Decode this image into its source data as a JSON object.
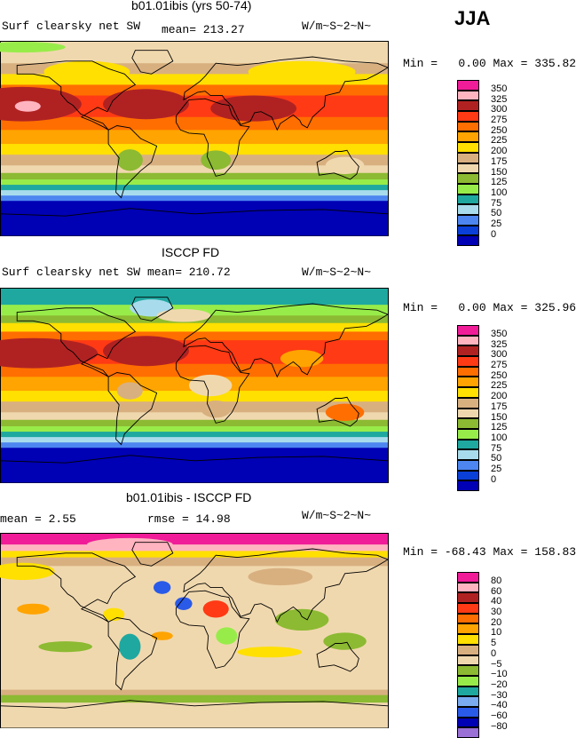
{
  "season": "JJA",
  "colors": {
    "abs": [
      "#9a6fd6",
      "#0000b4",
      "#0a3fd8",
      "#4d86f0",
      "#a8dcec",
      "#1ea8a0",
      "#98ec4a",
      "#8cba32",
      "#f0d8ae",
      "#d8b080",
      "#ffe000",
      "#ffa400",
      "#ff6e00",
      "#ff3a14",
      "#b02222",
      "#ffb4c0",
      "#f01c98"
    ],
    "diff": [
      "#9a6fd6",
      "#0000b4",
      "#2a5ae8",
      "#7aaaf0",
      "#1ea8a0",
      "#98ec4a",
      "#8cba32",
      "#f0d8ae",
      "#d8b080",
      "#ffe000",
      "#ffa400",
      "#ff6e00",
      "#ff3a14",
      "#b02222",
      "#ffb4c0",
      "#f01c98"
    ],
    "land": "#000000"
  },
  "panels": [
    {
      "title": "b01.01ibis (yrs 50-74)",
      "left_label": "Surf clearsky net SW",
      "mid_label": "mean= 213.27",
      "units": "W/m~S~2~N~",
      "min_label": "Min =",
      "min_value": "0.00",
      "max_label": "Max =",
      "max_value": "335.82",
      "legend_levels": [
        "350",
        "325",
        "300",
        "275",
        "250",
        "225",
        "200",
        "175",
        "150",
        "125",
        "100",
        "75",
        "50",
        "25",
        "0"
      ],
      "bands": [
        {
          "lat0": 90,
          "lat1": 80,
          "c": 8
        },
        {
          "lat0": 80,
          "lat1": 70,
          "c": 8
        },
        {
          "lat0": 70,
          "lat1": 60,
          "c": 9
        },
        {
          "lat0": 60,
          "lat1": 50,
          "c": 10
        },
        {
          "lat0": 50,
          "lat1": 40,
          "c": 12
        },
        {
          "lat0": 40,
          "lat1": 20,
          "c": 13
        },
        {
          "lat0": 20,
          "lat1": 8,
          "c": 12
        },
        {
          "lat0": 8,
          "lat1": -5,
          "c": 11
        },
        {
          "lat0": -5,
          "lat1": -15,
          "c": 10
        },
        {
          "lat0": -15,
          "lat1": -25,
          "c": 9
        },
        {
          "lat0": -25,
          "lat1": -32,
          "c": 8
        },
        {
          "lat0": -32,
          "lat1": -38,
          "c": 7
        },
        {
          "lat0": -38,
          "lat1": -43,
          "c": 6
        },
        {
          "lat0": -43,
          "lat1": -48,
          "c": 5
        },
        {
          "lat0": -48,
          "lat1": -53,
          "c": 4
        },
        {
          "lat0": -53,
          "lat1": -58,
          "c": 3
        },
        {
          "lat0": -58,
          "lat1": -90,
          "c": 1
        }
      ],
      "blobs": [
        {
          "lon": -160,
          "lat": 32,
          "rx": 55,
          "ry": 16,
          "c": 14
        },
        {
          "lon": -45,
          "lat": 32,
          "rx": 40,
          "ry": 14,
          "c": 14
        },
        {
          "lon": -155,
          "lat": 30,
          "rx": 12,
          "ry": 5,
          "c": 15
        },
        {
          "lon": 55,
          "lat": 28,
          "rx": 40,
          "ry": 12,
          "c": 14
        },
        {
          "lon": -100,
          "lat": 62,
          "rx": 40,
          "ry": 10,
          "c": 10
        },
        {
          "lon": 100,
          "lat": 62,
          "rx": 50,
          "ry": 10,
          "c": 10
        },
        {
          "lon": 140,
          "lat": -25,
          "rx": 18,
          "ry": 8,
          "c": 8
        },
        {
          "lon": 20,
          "lat": -20,
          "rx": 14,
          "ry": 9,
          "c": 7
        },
        {
          "lon": -60,
          "lat": -20,
          "rx": 12,
          "ry": 10,
          "c": 7
        },
        {
          "lon": -160,
          "lat": 85,
          "rx": 40,
          "ry": 5,
          "c": 6
        }
      ]
    },
    {
      "title": "ISCCP FD",
      "left_label": "Surf clearsky net SW",
      "mid_label": "mean= 210.72",
      "units": "W/m~S~2~N~",
      "min_label": "Min =",
      "min_value": "0.00",
      "max_label": "Max =",
      "max_value": "325.96",
      "legend_levels": [
        "350",
        "325",
        "300",
        "275",
        "250",
        "225",
        "200",
        "175",
        "150",
        "125",
        "100",
        "75",
        "50",
        "25",
        "0"
      ],
      "bands": [
        {
          "lat0": 90,
          "lat1": 75,
          "c": 5
        },
        {
          "lat0": 75,
          "lat1": 65,
          "c": 6
        },
        {
          "lat0": 65,
          "lat1": 58,
          "c": 7
        },
        {
          "lat0": 58,
          "lat1": 50,
          "c": 10
        },
        {
          "lat0": 50,
          "lat1": 42,
          "c": 12
        },
        {
          "lat0": 42,
          "lat1": 20,
          "c": 13
        },
        {
          "lat0": 20,
          "lat1": 8,
          "c": 12
        },
        {
          "lat0": 8,
          "lat1": -5,
          "c": 11
        },
        {
          "lat0": -5,
          "lat1": -15,
          "c": 10
        },
        {
          "lat0": -15,
          "lat1": -25,
          "c": 9
        },
        {
          "lat0": -25,
          "lat1": -32,
          "c": 8
        },
        {
          "lat0": -32,
          "lat1": -38,
          "c": 7
        },
        {
          "lat0": -38,
          "lat1": -43,
          "c": 6
        },
        {
          "lat0": -43,
          "lat1": -48,
          "c": 5
        },
        {
          "lat0": -48,
          "lat1": -53,
          "c": 4
        },
        {
          "lat0": -53,
          "lat1": -58,
          "c": 3
        },
        {
          "lat0": -58,
          "lat1": -90,
          "c": 1
        }
      ],
      "blobs": [
        {
          "lon": -150,
          "lat": 30,
          "rx": 60,
          "ry": 14,
          "c": 14
        },
        {
          "lon": -45,
          "lat": 32,
          "rx": 40,
          "ry": 14,
          "c": 14
        },
        {
          "lon": -40,
          "lat": 72,
          "rx": 20,
          "ry": 8,
          "c": 4
        },
        {
          "lon": -10,
          "lat": 65,
          "rx": 25,
          "ry": 6,
          "c": 8
        },
        {
          "lon": 15,
          "lat": 0,
          "rx": 20,
          "ry": 10,
          "c": 8
        },
        {
          "lon": -60,
          "lat": -5,
          "rx": 12,
          "ry": 8,
          "c": 9
        },
        {
          "lon": 100,
          "lat": 25,
          "rx": 20,
          "ry": 8,
          "c": 11
        },
        {
          "lon": 140,
          "lat": -25,
          "rx": 18,
          "ry": 8,
          "c": 12
        },
        {
          "lon": 20,
          "lat": -22,
          "rx": 14,
          "ry": 8,
          "c": 9
        }
      ]
    },
    {
      "title": "b01.01ibis - ISCCP FD",
      "left_label": "mean =   2.55",
      "mid_label": "rmse =  14.98",
      "units": "W/m~S~2~N~",
      "min_label": "Min =",
      "min_value": "-68.43",
      "max_label": "Max =",
      "max_value": "158.83",
      "legend_levels": [
        "80",
        "60",
        "40",
        "30",
        "20",
        "10",
        "5",
        "0",
        "−5",
        "−10",
        "−20",
        "−30",
        "−40",
        "−60",
        "−80"
      ],
      "bands": [
        {
          "lat0": 90,
          "lat1": 80,
          "c": 15
        },
        {
          "lat0": 80,
          "lat1": 74,
          "c": 14
        },
        {
          "lat0": 74,
          "lat1": 68,
          "c": 9
        },
        {
          "lat0": 68,
          "lat1": 60,
          "c": 8
        },
        {
          "lat0": 60,
          "lat1": -55,
          "c": 7
        },
        {
          "lat0": -55,
          "lat1": -60,
          "c": 8
        },
        {
          "lat0": -60,
          "lat1": -67,
          "c": 6
        },
        {
          "lat0": -67,
          "lat1": -90,
          "c": 7
        }
      ],
      "blobs": [
        {
          "lon": -160,
          "lat": 55,
          "rx": 30,
          "ry": 8,
          "c": 9
        },
        {
          "lon": 80,
          "lat": 50,
          "rx": 30,
          "ry": 8,
          "c": 8
        },
        {
          "lon": 100,
          "lat": 10,
          "rx": 25,
          "ry": 10,
          "c": 6
        },
        {
          "lon": 140,
          "lat": -10,
          "rx": 20,
          "ry": 8,
          "c": 6
        },
        {
          "lon": 20,
          "lat": 20,
          "rx": 12,
          "ry": 8,
          "c": 12
        },
        {
          "lon": 30,
          "lat": -5,
          "rx": 10,
          "ry": 8,
          "c": 5
        },
        {
          "lon": -10,
          "lat": 25,
          "rx": 8,
          "ry": 6,
          "c": 2
        },
        {
          "lon": -60,
          "lat": -15,
          "rx": 10,
          "ry": 12,
          "c": 4
        },
        {
          "lon": -150,
          "lat": 20,
          "rx": 15,
          "ry": 5,
          "c": 10
        },
        {
          "lon": -75,
          "lat": 15,
          "rx": 10,
          "ry": 6,
          "c": 9
        },
        {
          "lon": -30,
          "lat": 40,
          "rx": 8,
          "ry": 6,
          "c": 2
        },
        {
          "lon": 70,
          "lat": -20,
          "rx": 30,
          "ry": 5,
          "c": 9
        },
        {
          "lon": -120,
          "lat": -15,
          "rx": 25,
          "ry": 5,
          "c": 6
        },
        {
          "lon": -30,
          "lat": -5,
          "rx": 10,
          "ry": 4,
          "c": 10
        },
        {
          "lon": -60,
          "lat": 80,
          "rx": 40,
          "ry": 6,
          "c": 14
        }
      ]
    }
  ]
}
